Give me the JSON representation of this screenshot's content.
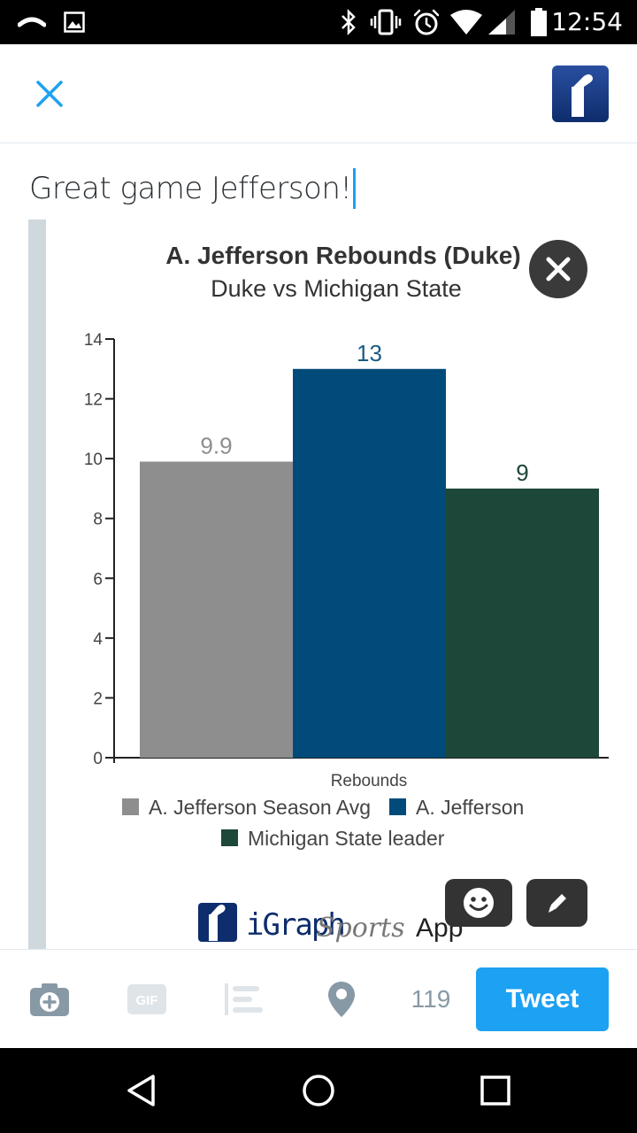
{
  "status_bar": {
    "time": "12:54",
    "icons": [
      "cast-icon",
      "image-icon",
      "bluetooth-icon",
      "vibrate-icon",
      "alarm-icon",
      "wifi-icon",
      "signal-icon",
      "battery-icon"
    ]
  },
  "header": {
    "close_icon": "close-icon",
    "logo": "igraph-logo"
  },
  "compose": {
    "text": "Great game Jefferson!"
  },
  "chart_data": {
    "type": "bar",
    "title": "A. Jefferson Rebounds (Duke)",
    "subtitle": "Duke vs Michigan State",
    "categories": [
      "Rebounds"
    ],
    "xlabel": "Rebounds",
    "ylabel": "",
    "ylim": [
      0,
      14
    ],
    "yticks": [
      0,
      2,
      4,
      6,
      8,
      10,
      12,
      14
    ],
    "series": [
      {
        "name": "A. Jefferson Season Avg",
        "values": [
          9.9
        ],
        "label": "9.9",
        "color": "#8e8e8e",
        "label_color": "#8e8e8e"
      },
      {
        "name": "A. Jefferson",
        "values": [
          13
        ],
        "label": "13",
        "color": "#014b7a",
        "label_color": "#1d5a85"
      },
      {
        "name": "Michigan State leader",
        "values": [
          9
        ],
        "label": "9",
        "color": "#1d4738",
        "label_color": "#1d4738"
      }
    ],
    "legend_position": "bottom",
    "grid": false
  },
  "branding": {
    "graph_text": "iGraph",
    "sports_text": "Sports",
    "app_text": "App"
  },
  "media_controls": {
    "remove_icon": "close-icon",
    "sticker_icon": "smiley-icon",
    "edit_icon": "pencil-icon"
  },
  "toolbar": {
    "char_count": "119",
    "tweet_label": "Tweet",
    "icons": [
      "camera-add-icon",
      "gif-icon",
      "poll-icon",
      "location-pin-icon"
    ],
    "gif_text": "GIF"
  },
  "nav": {
    "icons": [
      "back-icon",
      "home-icon",
      "recents-icon"
    ]
  },
  "colors": {
    "accent": "#1da1f2",
    "logo_blue": "#0d2d6c"
  }
}
